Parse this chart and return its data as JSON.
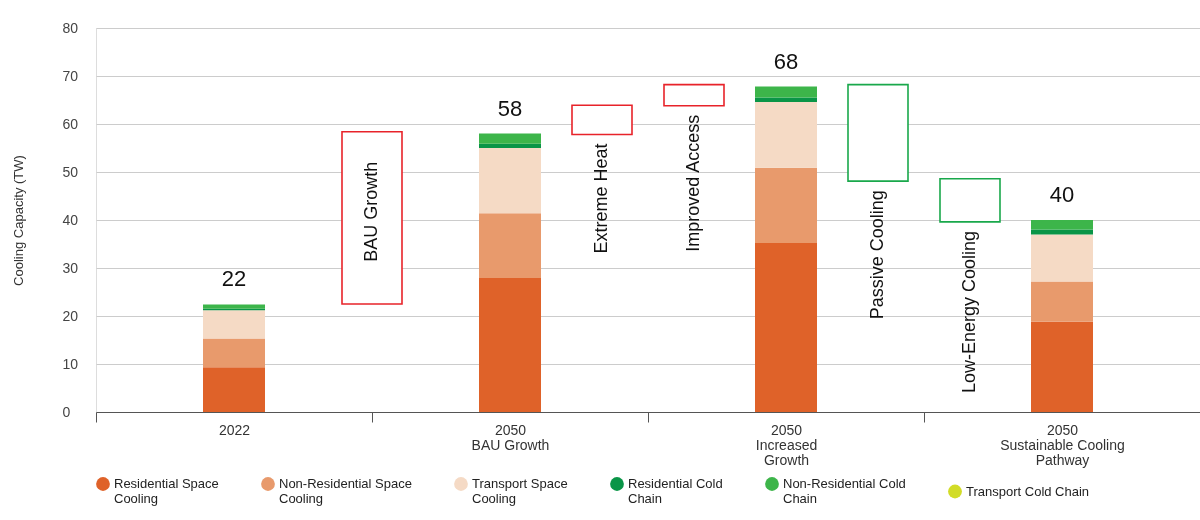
{
  "chart_data": {
    "type": "bar",
    "stacked": true,
    "ylabel": "Cooling Capacity (TW)",
    "categories": [
      null,
      null,
      null,
      "2022",
      null,
      null,
      null,
      null,
      null,
      "2050\nBAU Growth",
      null,
      null,
      null,
      null,
      null,
      "2050\nIncreased\nGrowth",
      null,
      null,
      null,
      null,
      null,
      "2050\nSustainable Cooling\nPathway",
      null,
      null,
      null
    ],
    "series": [
      {
        "name": "Residential Space Cooling",
        "color": "#df6229",
        "values": [
          null,
          null,
          null,
          9.3,
          null,
          null,
          null,
          null,
          null,
          27.9,
          null,
          null,
          null,
          null,
          null,
          35.2,
          null,
          null,
          null,
          null,
          null,
          18.8,
          null,
          null,
          null
        ]
      },
      {
        "name": "Non-Residential Space Cooling",
        "color": "#e89a6c",
        "values": [
          null,
          null,
          null,
          6.0,
          null,
          null,
          null,
          null,
          null,
          13.5,
          null,
          null,
          null,
          null,
          null,
          15.7,
          null,
          null,
          null,
          null,
          null,
          8.4,
          null,
          null,
          null
        ]
      },
      {
        "name": "Transport Space Cooling",
        "color": "#f5dac5",
        "values": [
          null,
          null,
          null,
          5.9,
          null,
          null,
          null,
          null,
          null,
          13.6,
          null,
          null,
          null,
          null,
          null,
          13.7,
          null,
          null,
          null,
          null,
          null,
          9.8,
          null,
          null,
          null
        ]
      },
      {
        "name": "Residential Cold Chain",
        "color": "#0a9547",
        "values": [
          null,
          null,
          null,
          0.3,
          null,
          null,
          null,
          null,
          null,
          0.9,
          null,
          null,
          null,
          null,
          null,
          0.9,
          null,
          null,
          null,
          null,
          null,
          1.0,
          null,
          null,
          null
        ]
      },
      {
        "name": "Non-Residential Cold Chain",
        "color": "#3db54a",
        "values": [
          null,
          null,
          null,
          0.9,
          null,
          null,
          null,
          null,
          null,
          2.1,
          null,
          null,
          null,
          null,
          null,
          2.3,
          null,
          null,
          null,
          null,
          null,
          2.0,
          null,
          null,
          null
        ]
      },
      {
        "name": "Transport Cold Chain",
        "color": "#d2dc27",
        "values": [
          null,
          null,
          null,
          0,
          null,
          null,
          null,
          null,
          null,
          0,
          null,
          null,
          null,
          null,
          null,
          0,
          null,
          null,
          null,
          null,
          null,
          0,
          null,
          null,
          null
        ]
      },
      {
        "name": "BAU Growth",
        "color": "#e8232a",
        "base": [
          null,
          null,
          null,
          null,
          null,
          null,
          22.5,
          null,
          null,
          null,
          null,
          null,
          null,
          null,
          null,
          null,
          null,
          null,
          null,
          null,
          null,
          null,
          null,
          null,
          null
        ],
        "values": [
          null,
          null,
          null,
          null,
          null,
          null,
          35.9,
          null,
          null,
          null,
          null,
          null,
          null,
          null,
          null,
          null,
          null,
          null,
          null,
          null,
          null,
          null,
          null,
          null,
          null
        ]
      },
      {
        "name": "Extreme Heat",
        "color": "#e8232a",
        "base": [
          null,
          null,
          null,
          null,
          null,
          null,
          null,
          null,
          null,
          null,
          null,
          57.8,
          null,
          null,
          null,
          null,
          null,
          null,
          null,
          null,
          null,
          null,
          null,
          null,
          null
        ],
        "values": [
          null,
          null,
          null,
          null,
          null,
          null,
          null,
          null,
          null,
          null,
          null,
          6.1,
          null,
          null,
          null,
          null,
          null,
          null,
          null,
          null,
          null,
          null,
          null,
          null,
          null
        ]
      },
      {
        "name": "Improved Access",
        "color": "#e8232a",
        "base": [
          null,
          null,
          null,
          null,
          null,
          null,
          null,
          null,
          null,
          null,
          null,
          null,
          null,
          63.8,
          null,
          null,
          null,
          null,
          null,
          null,
          null,
          null,
          null,
          null,
          null
        ],
        "values": [
          null,
          null,
          null,
          null,
          null,
          null,
          null,
          null,
          null,
          null,
          null,
          null,
          null,
          4.4,
          null,
          null,
          null,
          null,
          null,
          null,
          null,
          null,
          null,
          null,
          null
        ]
      },
      {
        "name": "Passive Cooling",
        "color": "#19a84b",
        "base": [
          null,
          null,
          null,
          null,
          null,
          null,
          null,
          null,
          null,
          null,
          null,
          null,
          null,
          null,
          null,
          null,
          null,
          68.2,
          null,
          null,
          null,
          null,
          null,
          null,
          null
        ],
        "values": [
          null,
          null,
          null,
          null,
          null,
          null,
          null,
          null,
          null,
          null,
          null,
          null,
          null,
          null,
          null,
          null,
          null,
          -20.1,
          null,
          null,
          null,
          null,
          null,
          null,
          null
        ]
      },
      {
        "name": "Low-Energy Cooling",
        "color": "#19a84b",
        "base": [
          null,
          null,
          null,
          null,
          null,
          null,
          null,
          null,
          null,
          null,
          null,
          null,
          null,
          null,
          null,
          null,
          null,
          null,
          null,
          48.6,
          null,
          null,
          null,
          null,
          null
        ],
        "values": [
          null,
          null,
          null,
          null,
          null,
          null,
          null,
          null,
          null,
          null,
          null,
          null,
          null,
          null,
          null,
          null,
          null,
          null,
          null,
          -9.0,
          null,
          null,
          null,
          null,
          null
        ]
      }
    ],
    "totals": [
      null,
      null,
      null,
      "22",
      null,
      null,
      null,
      null,
      null,
      "58",
      null,
      null,
      null,
      null,
      null,
      "68",
      null,
      null,
      null,
      null,
      null,
      "40",
      null,
      null,
      null
    ],
    "ylim": [
      0,
      80
    ],
    "yticks": [
      0,
      10,
      20,
      30,
      40,
      50,
      60,
      70,
      80
    ],
    "grid": "y",
    "legend": "bottom"
  }
}
